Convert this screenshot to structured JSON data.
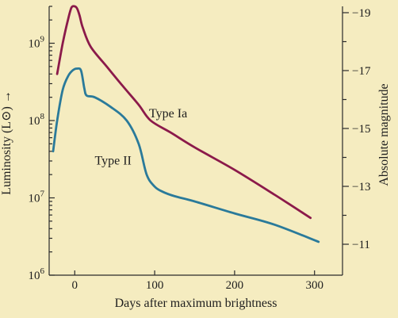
{
  "chart_data": {
    "type": "line",
    "title": "",
    "xlabel": "Days after maximum brightness",
    "ylabel": "Luminosity (L⊙) →",
    "y2label": "Absolute magnitude",
    "xlim": [
      -32,
      335
    ],
    "x_ticks": [
      0,
      100,
      200,
      300
    ],
    "y_scale": "log",
    "ylim": [
      1000000,
      3000000000
    ],
    "y_ticks": [
      {
        "value": 1000000,
        "base": "10",
        "exp": "6"
      },
      {
        "value": 10000000,
        "base": "10",
        "exp": "7"
      },
      {
        "value": 100000000,
        "base": "10",
        "exp": "8"
      },
      {
        "value": 1000000000,
        "base": "10",
        "exp": "9"
      }
    ],
    "y2_ticks": [
      "-19",
      "-17",
      "-15",
      "-13",
      "-11"
    ],
    "series": [
      {
        "name": "Type Ia",
        "color": "#8b1a4a",
        "x": [
          -22,
          -15,
          -8,
          -4,
          0,
          3,
          6,
          10,
          20,
          40,
          60,
          80,
          95,
          120,
          150,
          200,
          250,
          295
        ],
        "y": [
          400000000,
          1000000000,
          2100000000,
          2900000000,
          3000000000,
          2800000000,
          2300000000,
          1600000000,
          900000000,
          500000000,
          280000000,
          160000000,
          100000000,
          70000000,
          45000000,
          23000000,
          11000000,
          5500000
        ]
      },
      {
        "name": "Type II",
        "color": "#2a7a9a",
        "x": [
          -27,
          -22,
          -15,
          -8,
          -2,
          3,
          8,
          12,
          15,
          25,
          45,
          65,
          80,
          90,
          100,
          110,
          125,
          150,
          200,
          250,
          305
        ],
        "y": [
          40000000,
          100000000,
          250000000,
          380000000,
          450000000,
          470000000,
          440000000,
          260000000,
          210000000,
          200000000,
          150000000,
          100000000,
          50000000,
          20000000,
          14000000,
          12000000,
          10500000,
          9000000,
          6300000,
          4500000,
          2700000
        ]
      }
    ],
    "annotations": [
      {
        "text": "Type Ia",
        "x": 93,
        "y": 110000000
      },
      {
        "text": "Type II",
        "x": 25,
        "y": 27000000
      }
    ]
  }
}
